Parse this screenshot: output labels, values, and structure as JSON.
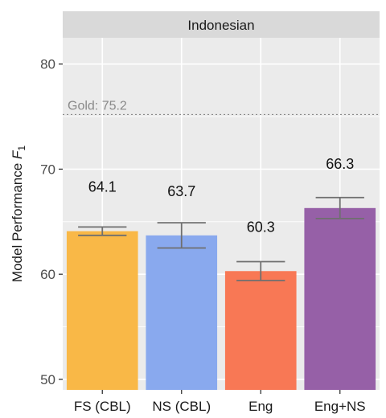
{
  "chart_data": {
    "type": "bar",
    "facet_label": "Indonesian",
    "categories": [
      "FS (CBL)",
      "NS (CBL)",
      "Eng",
      "Eng+NS"
    ],
    "values": [
      64.1,
      63.7,
      60.3,
      66.3
    ],
    "value_labels": [
      "64.1",
      "63.7",
      "60.3",
      "66.3"
    ],
    "error_bars": [
      {
        "low": 63.7,
        "high": 64.5
      },
      {
        "low": 62.5,
        "high": 64.9
      },
      {
        "low": 59.4,
        "high": 61.2
      },
      {
        "low": 65.3,
        "high": 67.3
      }
    ],
    "bar_colors": [
      "#F9B847",
      "#89A9EE",
      "#F87855",
      "#9660A7"
    ],
    "reference_line": {
      "value": 75.2,
      "label": "Gold: 75.2",
      "color": "#8a8a8a"
    },
    "ylabel_main": "Model Performance ",
    "ylabel_italic": "F",
    "ylabel_sub": "1",
    "xlabel": "",
    "ylim": [
      49,
      82.5
    ],
    "y_ticks": [
      50,
      60,
      70,
      80
    ],
    "y_tick_labels": [
      "50",
      "60",
      "70",
      "80"
    ],
    "grid": true,
    "panel_color": "#EBEBEB",
    "strip_color": "#D9D9D9"
  }
}
